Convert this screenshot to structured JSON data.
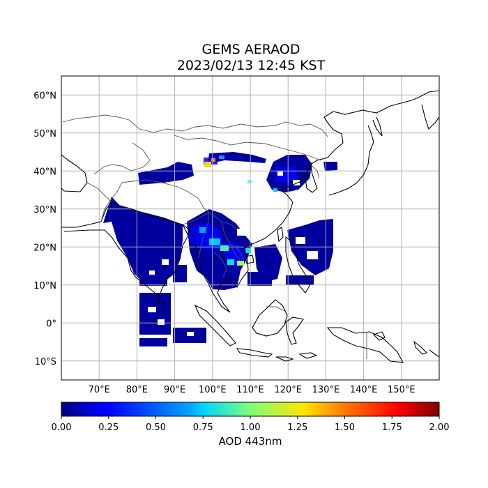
{
  "figure": {
    "title_line1": "GEMS AERAOD",
    "title_line2": "2023/02/13 12:45 KST"
  },
  "map": {
    "projection": "PlateCarree",
    "lon_range": [
      60,
      160
    ],
    "lat_range": [
      -15,
      65
    ],
    "lon_ticks": [
      {
        "value": 70,
        "label": "70°E"
      },
      {
        "value": 80,
        "label": "80°E"
      },
      {
        "value": 90,
        "label": "90°E"
      },
      {
        "value": 100,
        "label": "100°E"
      },
      {
        "value": 110,
        "label": "110°E"
      },
      {
        "value": 120,
        "label": "120°E"
      },
      {
        "value": 130,
        "label": "130°E"
      },
      {
        "value": 140,
        "label": "140°E"
      },
      {
        "value": 150,
        "label": "150°E"
      }
    ],
    "lat_ticks": [
      {
        "value": 60,
        "label": "60°N"
      },
      {
        "value": 50,
        "label": "50°N"
      },
      {
        "value": 40,
        "label": "40°N"
      },
      {
        "value": 30,
        "label": "30°N"
      },
      {
        "value": 20,
        "label": "20°N"
      },
      {
        "value": 10,
        "label": "10°N"
      },
      {
        "value": 0,
        "label": "0°"
      },
      {
        "value": -10,
        "label": "10°S"
      }
    ],
    "gridlines": true,
    "gridline_color": "#b0b0b0",
    "coastline_color": "#000000",
    "border_color": "#555555"
  },
  "colorbar": {
    "label": "AOD 443nm",
    "min": 0.0,
    "max": 2.0,
    "colormap": "jet",
    "orientation": "horizontal",
    "ticks": [
      "0.00",
      "0.25",
      "0.50",
      "0.75",
      "1.00",
      "1.25",
      "1.50",
      "1.75",
      "2.00"
    ]
  }
}
